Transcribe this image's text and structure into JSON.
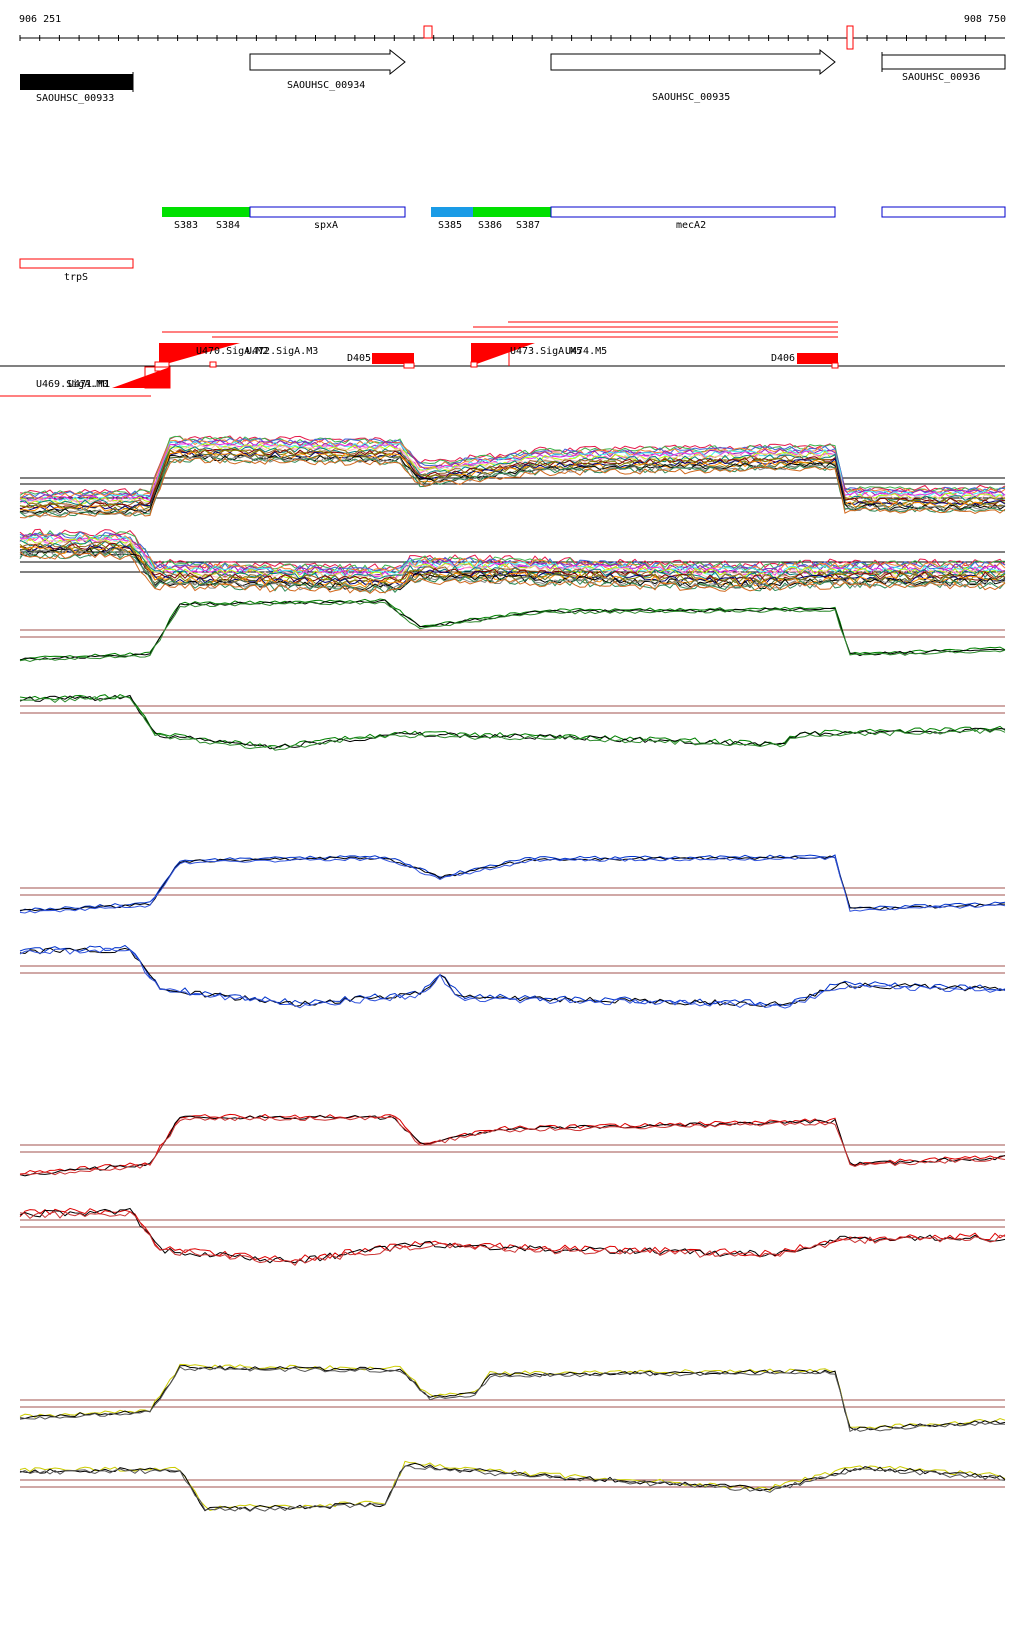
{
  "ruler": {
    "start_label": "906 251",
    "end_label": "908 750"
  },
  "genes": [
    {
      "label": "SAOUHSC_00933",
      "style": "filled",
      "strand": "none"
    },
    {
      "label": "SAOUHSC_00934",
      "style": "open",
      "strand": "forward"
    },
    {
      "label": "SAOUHSC_00935",
      "style": "open",
      "strand": "forward"
    },
    {
      "label": "SAOUHSC_00936",
      "style": "open",
      "strand": "none"
    }
  ],
  "segments": [
    {
      "label": "S383",
      "color": "#00e000"
    },
    {
      "label": "S384",
      "color": "#00e000"
    },
    {
      "label": "spxA",
      "color": "#0000cc"
    },
    {
      "label": "S385",
      "color": "#1a9be6"
    },
    {
      "label": "S386",
      "color": "#00e000"
    },
    {
      "label": "S387",
      "color": "#00e000"
    },
    {
      "label": "mecA2",
      "color": "#0000cc"
    },
    {
      "label": "",
      "color": "#0000cc"
    }
  ],
  "antisense": {
    "label": "trpS",
    "color": "#ff0000"
  },
  "promoters": [
    {
      "label": "U470.SigA.M2"
    },
    {
      "label": "U472.SigA.M3"
    },
    {
      "label": "U473.SigA.M5"
    },
    {
      "label": "U474.M5"
    },
    {
      "label": "U469.SigA.M0"
    },
    {
      "label": "U471.M1"
    }
  ],
  "terminators": [
    {
      "label": "D405"
    },
    {
      "label": "D406"
    }
  ],
  "colors": {
    "feature": "#ff0000",
    "threshold": "#a0524d",
    "profile_green": "#008000",
    "profile_blue": "#0033cc",
    "profile_red": "#dd0000",
    "profile_yellow": "#cccc00"
  }
}
